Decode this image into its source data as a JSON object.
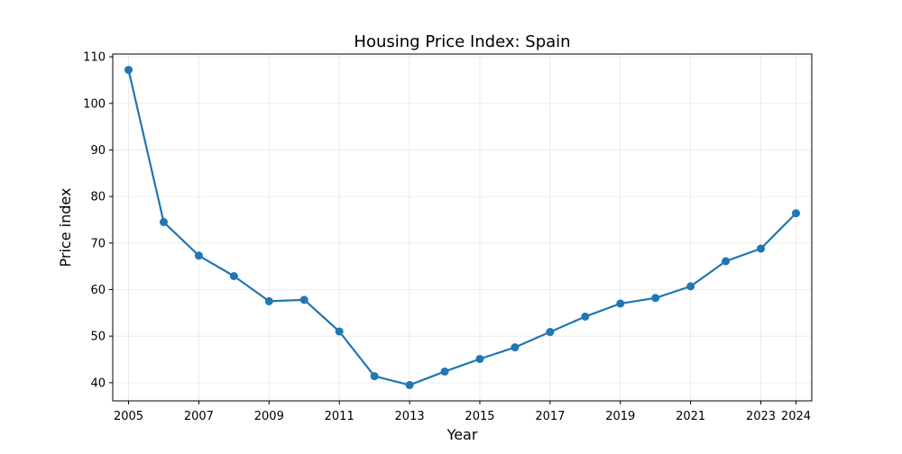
{
  "chart_data": {
    "type": "line",
    "title": "Housing Price Index: Spain",
    "xlabel": "Year",
    "ylabel": "Price index",
    "x": [
      2005,
      2006,
      2007,
      2008,
      2009,
      2010,
      2011,
      2012,
      2013,
      2014,
      2015,
      2016,
      2017,
      2018,
      2019,
      2020,
      2021,
      2022,
      2023,
      2024
    ],
    "series": [
      {
        "values": [
          107.2,
          74.5,
          67.3,
          62.9,
          57.5,
          57.8,
          51.0,
          41.4,
          39.5,
          42.4,
          45.1,
          47.6,
          50.9,
          54.2,
          57.0,
          58.2,
          60.7,
          66.1,
          68.8,
          76.4
        ],
        "color": "#1f77b4"
      }
    ],
    "xticks": [
      2005,
      2007,
      2009,
      2011,
      2013,
      2015,
      2017,
      2019,
      2021,
      2023,
      2024
    ],
    "yticks": [
      40,
      50,
      60,
      70,
      80,
      90,
      100,
      110
    ],
    "xlim": [
      2004.55,
      2024.45
    ],
    "ylim": [
      36.1,
      110.6
    ],
    "grid": true,
    "legend": "none",
    "marker": "circle"
  }
}
